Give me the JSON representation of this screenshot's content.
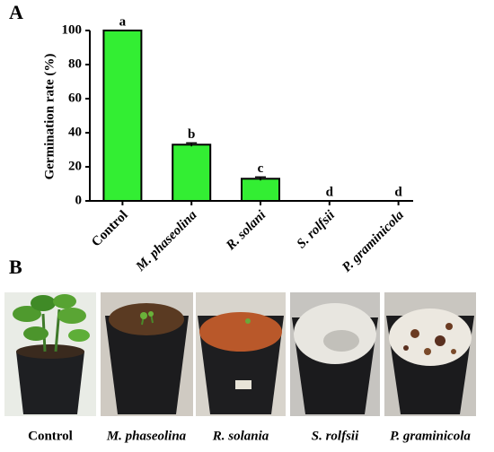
{
  "chart_data": {
    "type": "bar",
    "panel_label": "A",
    "ylabel": "Germination rate (%)",
    "categories": [
      "Control",
      "M. phaseolina",
      "R. solani",
      "S. rolfsii",
      "P. graminicola"
    ],
    "values": [
      100,
      33,
      13,
      0,
      0
    ],
    "errors": [
      0,
      1,
      1,
      0,
      0
    ],
    "annotations": [
      "a",
      "b",
      "c",
      "d",
      "d"
    ],
    "color": "#33ee33",
    "ylim": [
      0,
      100
    ],
    "yticks": [
      0,
      20,
      40,
      60,
      80,
      100
    ]
  },
  "photo_panel": {
    "label": "B",
    "captions": [
      "Control",
      "M. phaseolina",
      "R. solania",
      "S. rolfsii",
      "P. graminicola"
    ]
  }
}
